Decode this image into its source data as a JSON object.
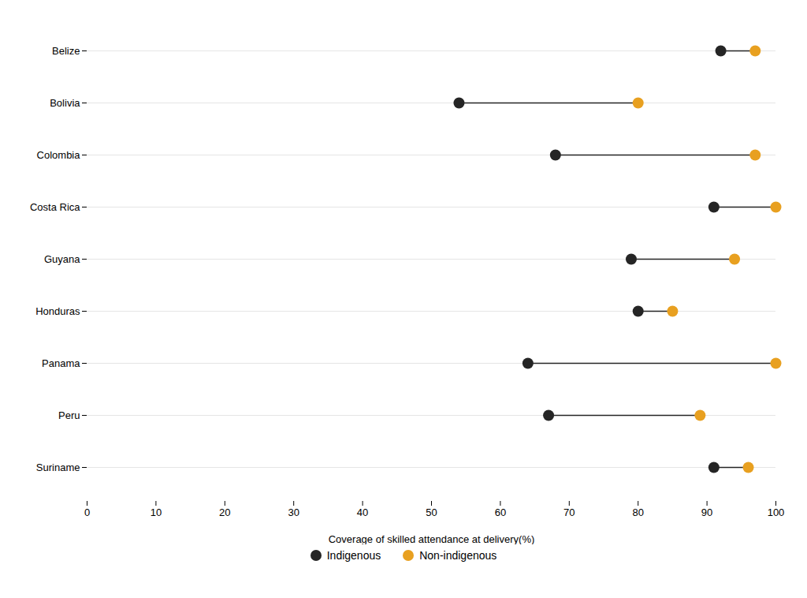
{
  "chart_data": {
    "type": "dumbbell",
    "orientation": "horizontal",
    "categories": [
      "Belize",
      "Bolivia",
      "Colombia",
      "Costa Rica",
      "Guyana",
      "Honduras",
      "Panama",
      "Peru",
      "Suriname"
    ],
    "series": [
      {
        "name": "Indigenous",
        "color": "#252525",
        "values": [
          92,
          54,
          68,
          91,
          79,
          80,
          64,
          67,
          91
        ]
      },
      {
        "name": "Non-indigenous",
        "color": "#E8A020",
        "values": [
          97,
          80,
          97,
          100,
          94,
          85,
          100,
          89,
          96
        ]
      }
    ],
    "color": "#252525",
    "xlabel": "Coverage of skilled attendance at delivery(%)",
    "xlim": [
      0,
      100
    ],
    "xticks": [
      0,
      10,
      20,
      30,
      40,
      50,
      60,
      70,
      80,
      90,
      100
    ],
    "grid": true,
    "legend": "bottom"
  }
}
